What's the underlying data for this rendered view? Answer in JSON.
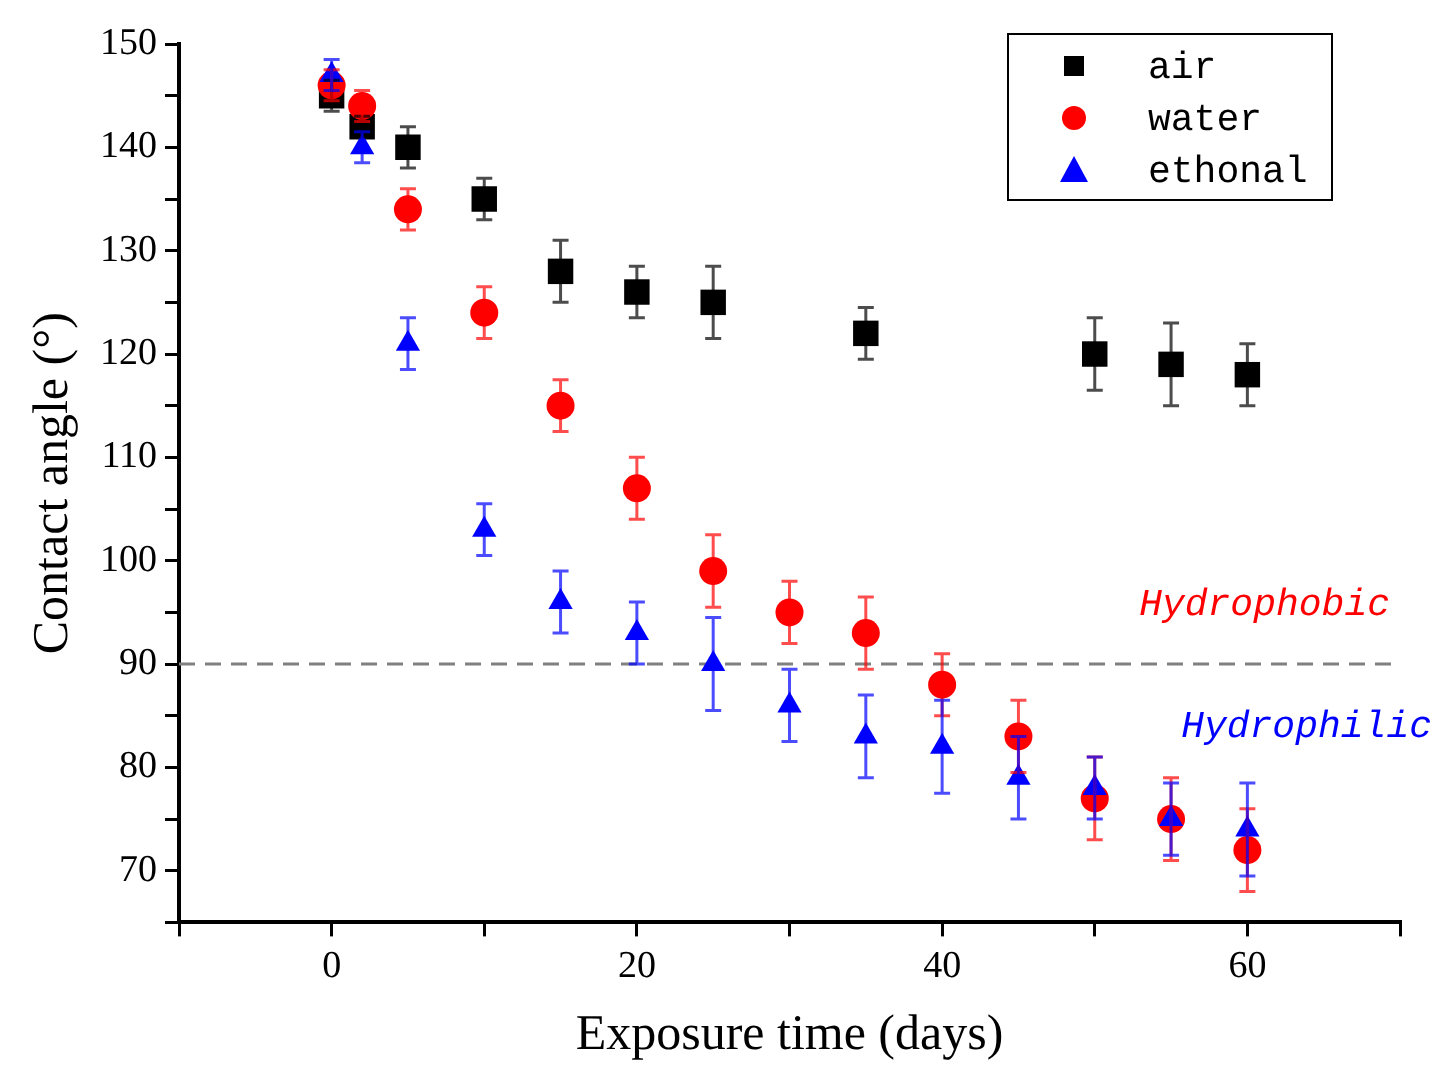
{
  "chart_data": {
    "type": "scatter",
    "xlabel": "Exposure time (days)",
    "ylabel": "Contact angle (°)",
    "xlim": [
      -10,
      70
    ],
    "xticks": [
      {
        "value": -10,
        "label": null
      },
      0,
      {
        "value": 10,
        "label": null
      },
      20,
      {
        "value": 30,
        "label": null
      },
      40,
      {
        "value": 50,
        "label": null
      },
      60,
      {
        "value": 70,
        "label": null
      }
    ],
    "ylim": [
      65,
      150
    ],
    "yticks": [
      {
        "value": 65,
        "label": null
      },
      70,
      {
        "value": 75,
        "label": null
      },
      80,
      {
        "value": 85,
        "label": null
      },
      90,
      {
        "value": 95,
        "label": null
      },
      100,
      {
        "value": 105,
        "label": null
      },
      110,
      {
        "value": 115,
        "label": null
      },
      120,
      {
        "value": 125,
        "label": null
      },
      130,
      {
        "value": 135,
        "label": null
      },
      140,
      {
        "value": 145,
        "label": null
      },
      150
    ],
    "grid": false,
    "legend": "top right",
    "series": [
      {
        "name": "air",
        "color": "#000000",
        "marker": "square",
        "x": [
          0,
          2,
          5,
          10,
          15,
          20,
          25,
          35,
          50,
          55,
          60
        ],
        "values": [
          145,
          142,
          140,
          135,
          128,
          126,
          125,
          122,
          120,
          119,
          118
        ],
        "errors": [
          1.5,
          1,
          2,
          2,
          3,
          2.5,
          3.5,
          2.5,
          3.5,
          4,
          3
        ]
      },
      {
        "name": "water",
        "color": "#ff0000",
        "marker": "circle",
        "x": [
          0,
          2,
          5,
          10,
          15,
          20,
          25,
          30,
          35,
          40,
          45,
          50,
          55,
          60
        ],
        "values": [
          146,
          144,
          134,
          124,
          115,
          107,
          99,
          95,
          93,
          88,
          83,
          77,
          75,
          72
        ],
        "errors": [
          1.5,
          1.5,
          2,
          2.5,
          2.5,
          3,
          3.5,
          3,
          3.5,
          3,
          3.5,
          4,
          4,
          4
        ]
      },
      {
        "name": "ethonal",
        "color": "#0000ff",
        "marker": "triangle",
        "x": [
          0,
          2,
          5,
          10,
          15,
          20,
          25,
          30,
          35,
          40,
          45,
          50,
          55,
          60
        ],
        "values": [
          147,
          140,
          121,
          103,
          96,
          93,
          90,
          86,
          83,
          82,
          79,
          78,
          75,
          74
        ],
        "errors": [
          1.5,
          1.5,
          2.5,
          2.5,
          3,
          3,
          4.5,
          3.5,
          4,
          4.5,
          4,
          3,
          3.5,
          4.5
        ]
      }
    ],
    "ref_lines": [
      {
        "axis": "y",
        "value": 90,
        "color": "#808080",
        "line_style": "dashed"
      }
    ],
    "annotations": [
      "Hydrophobic",
      "Hydrophilic"
    ]
  }
}
